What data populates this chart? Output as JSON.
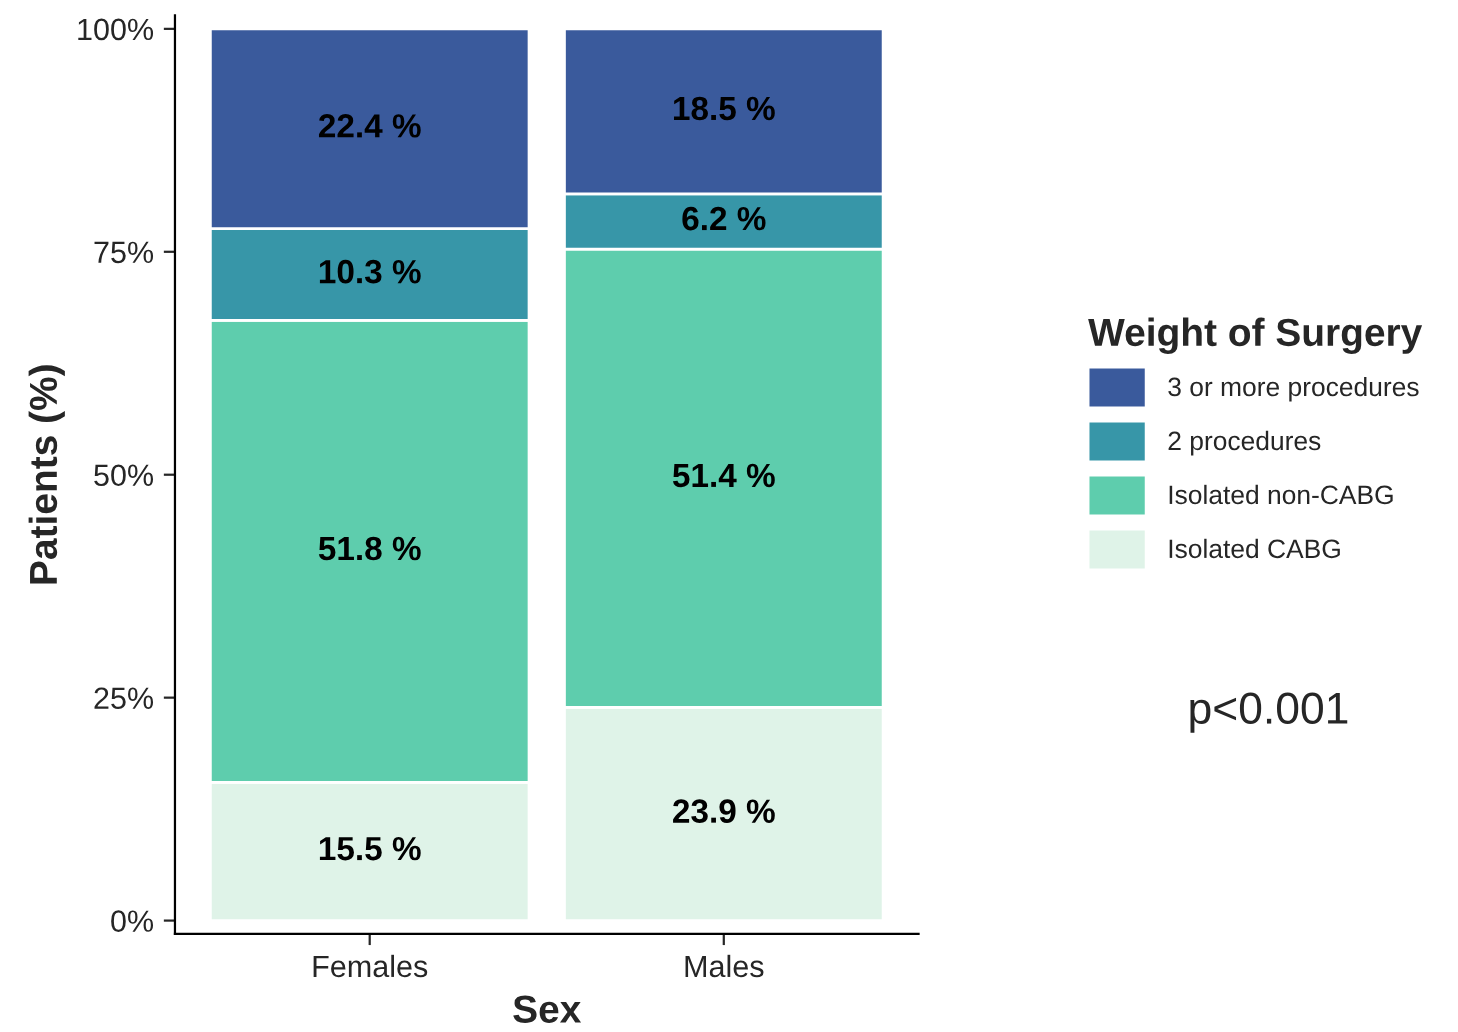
{
  "chart_data": {
    "type": "bar",
    "stacked": true,
    "xlabel": "Sex",
    "ylabel": "Patients (%)",
    "legend_title": "Weight of Surgery",
    "legend": "right",
    "categories": [
      "Females",
      "Males"
    ],
    "series": [
      {
        "name": "Isolated CABG",
        "color": "#dff3e8",
        "values": [
          15.5,
          23.9
        ],
        "value_labels": [
          "15.5 %",
          "23.9 %"
        ]
      },
      {
        "name": "Isolated non-CABG",
        "color": "#5ecdad",
        "values": [
          51.8,
          51.4
        ],
        "value_labels": [
          "51.8 %",
          "51.4 %"
        ]
      },
      {
        "name": "2 procedures",
        "color": "#3796a8",
        "values": [
          10.3,
          6.2
        ],
        "value_labels": [
          "10.3 %",
          "6.2 %"
        ]
      },
      {
        "name": "3 or more procedures",
        "color": "#3a5a9c",
        "values": [
          22.4,
          18.5
        ],
        "value_labels": [
          "22.4 %",
          "18.5 %"
        ]
      }
    ],
    "ylim": [
      -1.5,
      101.5
    ],
    "yticks": [
      {
        "value": 0,
        "label": "0%"
      },
      {
        "value": 25,
        "label": "25%"
      },
      {
        "value": 50,
        "label": "50%"
      },
      {
        "value": 75,
        "label": "75%"
      },
      {
        "value": 100,
        "label": "100%"
      }
    ],
    "grid": false,
    "annotations": [
      "p<0.001"
    ]
  }
}
